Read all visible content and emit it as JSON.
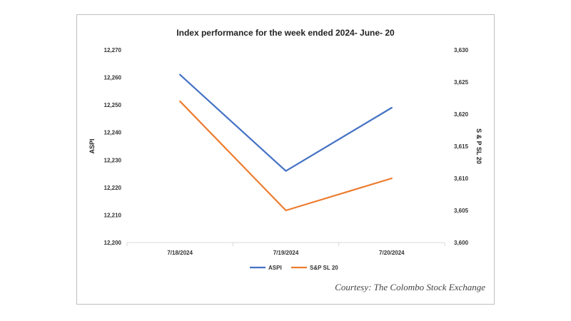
{
  "chart_data": {
    "type": "line",
    "title": "Index performance for the week ended 2024- June- 20",
    "categories": [
      "7/18/2024",
      "7/19/2024",
      "7/20/2024"
    ],
    "y_left": {
      "label": "ASPI",
      "lim": [
        12200,
        12270
      ],
      "ticks": [
        "12,200",
        "12,210",
        "12,220",
        "12,230",
        "12,240",
        "12,250",
        "12,260",
        "12,270"
      ]
    },
    "y_right": {
      "label": "S & P SL 20",
      "lim": [
        3600,
        3630
      ],
      "ticks": [
        "3,600",
        "3,605",
        "3,610",
        "3,615",
        "3,620",
        "3,625",
        "3,630"
      ]
    },
    "series": [
      {
        "name": "ASPI",
        "axis": "left",
        "color": "#4472C4",
        "values": [
          12261,
          12226,
          12249
        ]
      },
      {
        "name": "S&P SL 20",
        "axis": "right",
        "color": "#ED7D31",
        "values": [
          3622,
          3605,
          3610
        ]
      }
    ],
    "legend_position": "bottom",
    "grid": false
  },
  "courtesy": "Courtesy: The Colombo Stock Exchange"
}
